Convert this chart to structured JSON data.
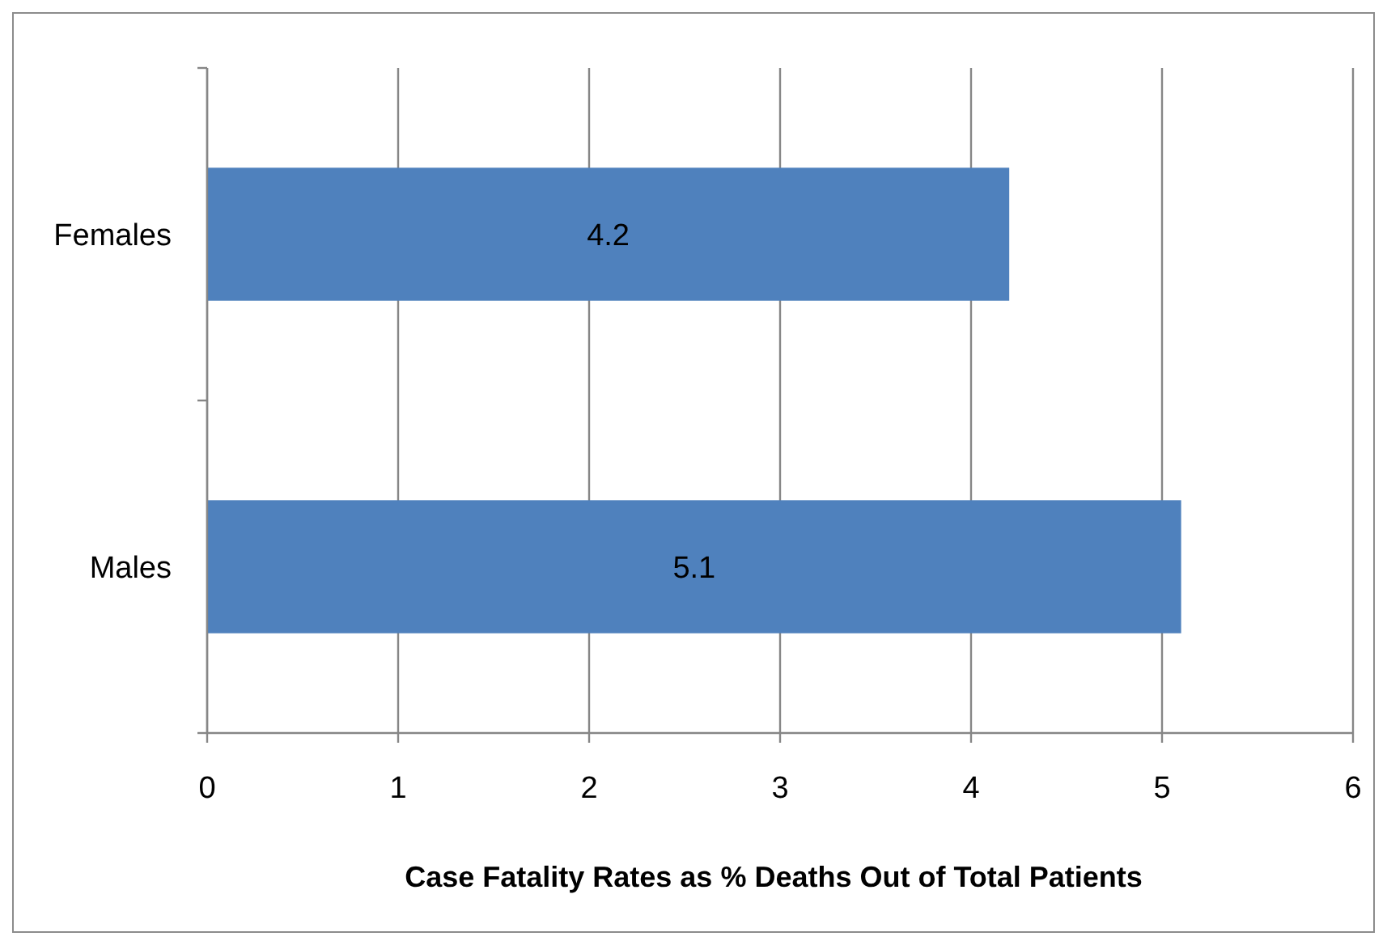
{
  "chart_data": {
    "type": "bar",
    "orientation": "horizontal",
    "categories": [
      "Females",
      "Males"
    ],
    "values": [
      4.2,
      5.1
    ],
    "color": "#4f81bd",
    "xlim": [
      0,
      6
    ],
    "xticks": [
      0,
      1,
      2,
      3,
      4,
      5,
      6
    ],
    "grid": "x",
    "data_labels": true,
    "xlabel": "Case Fatality Rates as % Deaths Out of Total Patients"
  }
}
